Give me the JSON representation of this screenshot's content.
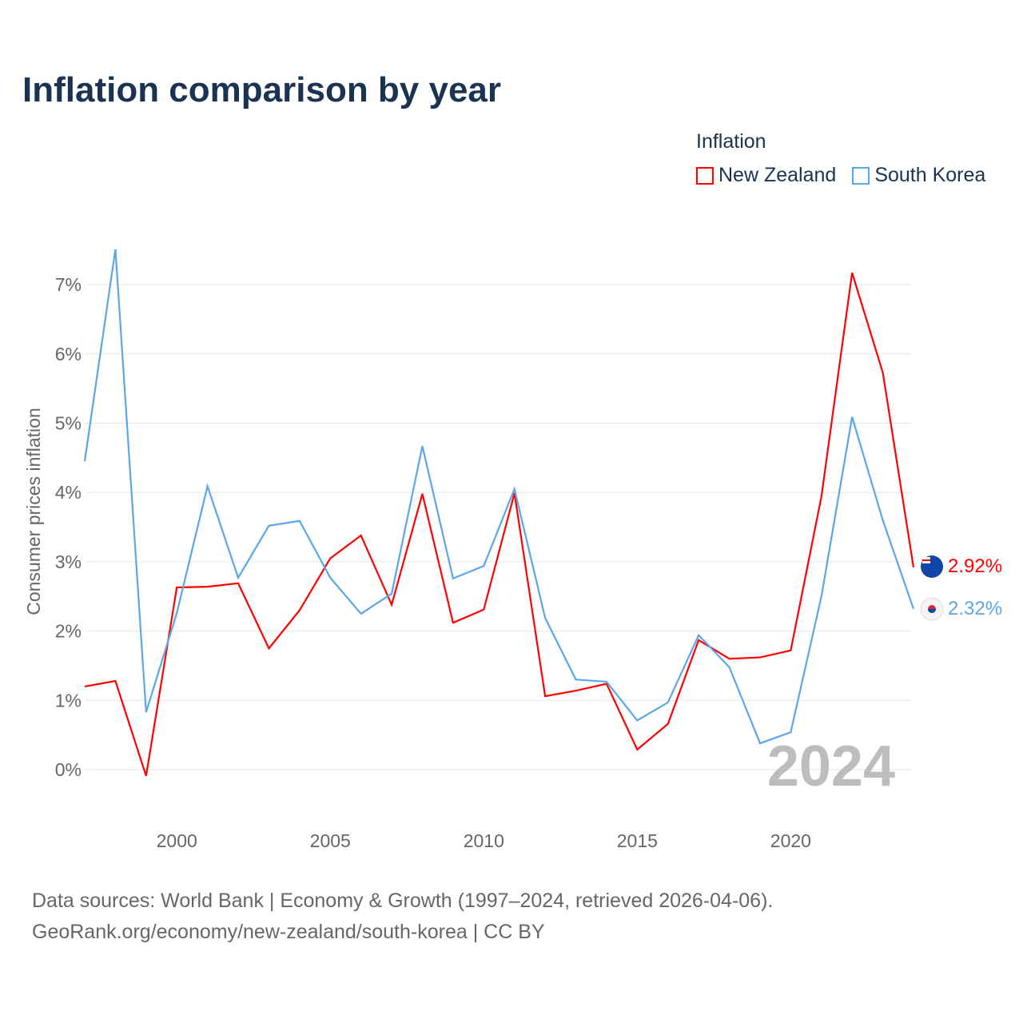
{
  "title": "Inflation comparison by year",
  "legend": {
    "title": "Inflation",
    "items": [
      {
        "label": "New Zealand",
        "color": "#ff0000"
      },
      {
        "label": "South Korea",
        "color": "#5ba6ea"
      }
    ]
  },
  "source": {
    "line1": "Data sources: World Bank | Economy & Growth (1997–2024, retrieved 2026-04-06).",
    "line2": "GeoRank.org/economy/new-zealand/south-korea | CC BY"
  },
  "chart_data": {
    "type": "line",
    "title": "Inflation comparison by year",
    "xlabel": "",
    "ylabel": "Consumer prices inflation",
    "xlim": [
      1997,
      2024
    ],
    "ylim": [
      -0.5,
      7.5
    ],
    "x_ticks": [
      2000,
      2005,
      2010,
      2015,
      2020
    ],
    "y_ticks": [
      0,
      1,
      2,
      3,
      4,
      5,
      6,
      7
    ],
    "y_tick_labels": [
      "0%",
      "1%",
      "2%",
      "3%",
      "4%",
      "5%",
      "6%",
      "7%"
    ],
    "watermark_year": "2024",
    "x": [
      1997,
      1998,
      1999,
      2000,
      2001,
      2002,
      2003,
      2004,
      2005,
      2006,
      2007,
      2008,
      2009,
      2010,
      2011,
      2012,
      2013,
      2014,
      2015,
      2016,
      2017,
      2018,
      2019,
      2020,
      2021,
      2022,
      2023,
      2024
    ],
    "series": [
      {
        "name": "New Zealand",
        "color": "#ff0000",
        "end_label": "2.92%",
        "values": [
          1.2,
          1.28,
          -0.09,
          2.63,
          2.64,
          2.69,
          1.75,
          2.3,
          3.05,
          3.38,
          2.38,
          3.98,
          2.12,
          2.31,
          3.99,
          1.06,
          1.14,
          1.24,
          0.29,
          0.66,
          1.87,
          1.6,
          1.62,
          1.72,
          3.94,
          7.17,
          5.73,
          2.92
        ]
      },
      {
        "name": "South Korea",
        "color": "#5ba6ea",
        "end_label": "2.32%",
        "values": [
          4.45,
          7.51,
          0.83,
          2.26,
          4.09,
          2.77,
          3.52,
          3.59,
          2.77,
          2.25,
          2.54,
          4.67,
          2.76,
          2.94,
          4.05,
          2.19,
          1.3,
          1.27,
          0.71,
          0.97,
          1.94,
          1.48,
          0.38,
          0.54,
          2.5,
          5.09,
          3.6,
          2.32
        ]
      }
    ]
  }
}
